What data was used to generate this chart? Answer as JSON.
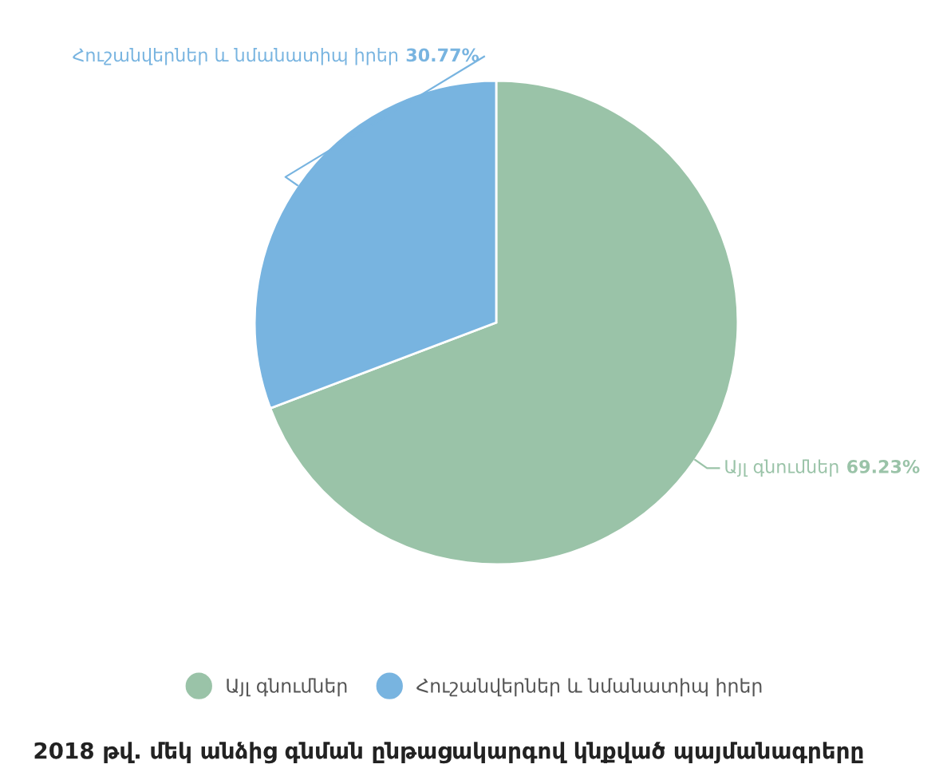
{
  "chart_data": {
    "type": "pie",
    "title": "2018 թվ. մեկ անձից գնման ընթացակարգով կնքված պայմանագրերը",
    "categories": [
      "Այլ գնումներ",
      "Հուշանվերներ և նմանատիպ իրեր"
    ],
    "values": [
      69.23,
      30.77
    ],
    "value_labels": [
      "69.23%",
      "30.77%"
    ],
    "colors": [
      "#9ac3a8",
      "#78b4e0"
    ],
    "legend": "bottom"
  }
}
